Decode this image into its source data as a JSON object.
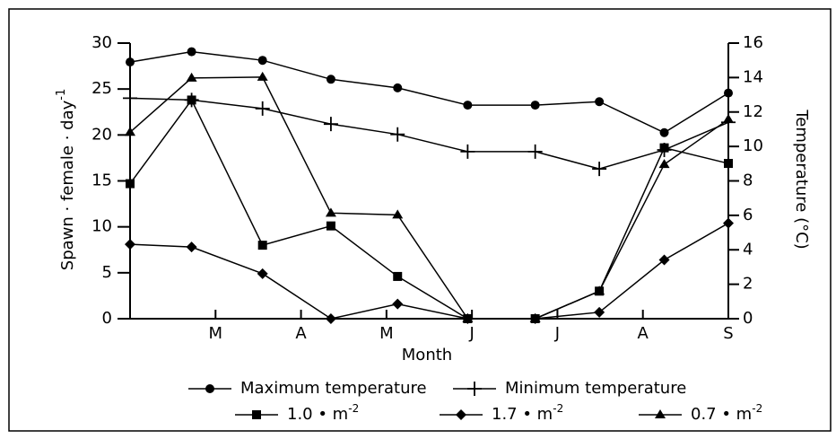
{
  "chart_data": {
    "type": "line",
    "xlabel": "Month",
    "ylabel": "Spawn · female · day",
    "ylabel_sup": "-1",
    "y2label": "Temperature (°C)",
    "xlim": [
      0,
      7
    ],
    "xticks": [
      {
        "value": 1,
        "label": "M"
      },
      {
        "value": 2,
        "label": "A"
      },
      {
        "value": 3,
        "label": "M"
      },
      {
        "value": 4,
        "label": "J"
      },
      {
        "value": 5,
        "label": "J"
      },
      {
        "value": 6,
        "label": "A"
      },
      {
        "value": 7,
        "label": "S"
      }
    ],
    "ylim": [
      0,
      30
    ],
    "yticks": [
      0,
      5,
      10,
      15,
      20,
      25,
      30
    ],
    "y2lim": [
      0,
      16
    ],
    "y2ticks": [
      0,
      2,
      4,
      6,
      8,
      10,
      12,
      14,
      16
    ],
    "x": [
      0,
      0.72,
      1.55,
      2.35,
      3.13,
      3.95,
      4.74,
      5.49,
      6.25,
      7.0
    ],
    "series": [
      {
        "name": "Maximum temperature",
        "marker": "circle",
        "color": "#000000",
        "axis": "y2",
        "values": [
          14.9,
          15.5,
          15.0,
          13.9,
          13.4,
          12.4,
          12.4,
          12.6,
          10.8,
          13.1
        ]
      },
      {
        "name": "Minimum temperature",
        "marker": "plus",
        "color": "#000000",
        "axis": "y2",
        "values": [
          12.8,
          12.7,
          12.2,
          11.3,
          10.7,
          9.7,
          9.7,
          8.7,
          9.8,
          11.4
        ]
      },
      {
        "name": "1.0 • m",
        "name_sup": "-2",
        "marker": "square",
        "color": "#000000",
        "values": [
          14.7,
          23.8,
          8.0,
          10.1,
          4.6,
          0,
          0,
          3.0,
          18.6,
          16.9
        ]
      },
      {
        "name": "1.7 • m",
        "name_sup": "-2",
        "marker": "diamond",
        "color": "#000000",
        "values": [
          8.1,
          7.8,
          4.9,
          0,
          1.6,
          0,
          0,
          0.7,
          6.4,
          10.4
        ]
      },
      {
        "name": "0.7 • m",
        "name_sup": "-2",
        "marker": "triangle",
        "color": "#000000",
        "values": [
          20.3,
          26.2,
          26.3,
          11.5,
          11.3,
          0,
          0,
          3.0,
          16.8,
          21.7
        ]
      }
    ]
  }
}
